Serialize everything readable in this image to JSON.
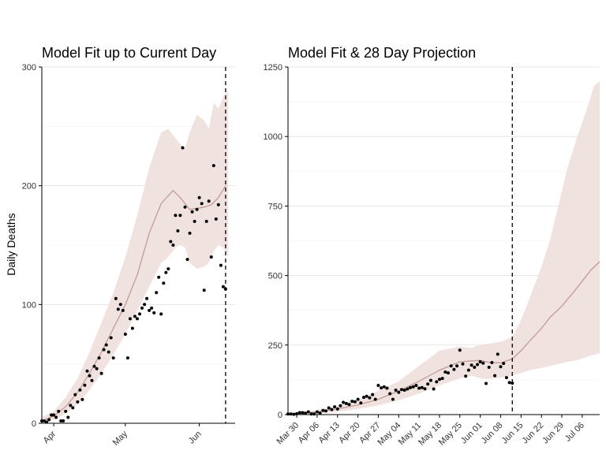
{
  "colors": {
    "band": "#efe2df",
    "median": "#c49a96",
    "points": "#000000"
  },
  "chart_data": [
    {
      "type": "line",
      "title": "Model Fit up to Current Day",
      "ylabel": "Daily Deaths",
      "xlabel": "",
      "x_unit": "days since Mar 27",
      "ylim": [
        0,
        300
      ],
      "xlim": [
        0,
        81
      ],
      "yticks": [
        0,
        100,
        200,
        300
      ],
      "ytick_labels": [
        "0",
        "100",
        "200",
        "300"
      ],
      "xticks": [
        5,
        35,
        66
      ],
      "xtick_labels": [
        "Apr",
        "May",
        "Jun"
      ],
      "current_day": 77,
      "median": {
        "x": [
          0,
          5,
          10,
          15,
          20,
          25,
          30,
          35,
          40,
          45,
          50,
          55,
          58,
          60,
          62,
          65,
          68,
          71,
          74,
          77
        ],
        "y": [
          2,
          6,
          14,
          26,
          42,
          60,
          80,
          100,
          125,
          160,
          185,
          196,
          190,
          185,
          180,
          181,
          182,
          184,
          190,
          200
        ]
      },
      "band_upper": {
        "x": [
          0,
          5,
          10,
          15,
          20,
          25,
          30,
          35,
          40,
          45,
          50,
          53,
          56,
          58,
          60,
          62,
          65,
          68,
          70,
          72,
          74,
          76,
          78
        ],
        "y": [
          5,
          10,
          22,
          38,
          60,
          85,
          110,
          140,
          175,
          215,
          245,
          248,
          240,
          235,
          232,
          245,
          260,
          255,
          248,
          270,
          265,
          275,
          280
        ]
      },
      "band_lower": {
        "x": [
          0,
          5,
          10,
          15,
          20,
          25,
          30,
          35,
          40,
          45,
          50,
          53,
          56,
          58,
          60,
          62,
          65,
          68,
          70,
          72,
          74,
          76,
          78
        ],
        "y": [
          1,
          3,
          8,
          16,
          28,
          42,
          58,
          75,
          95,
          115,
          135,
          140,
          148,
          150,
          148,
          135,
          130,
          132,
          135,
          145,
          150,
          148,
          140
        ]
      },
      "points": {
        "x": [
          0,
          1,
          2,
          3,
          4,
          5,
          6,
          7,
          8,
          9,
          10,
          11,
          12,
          13,
          14,
          15,
          16,
          17,
          18,
          19,
          20,
          21,
          22,
          23,
          24,
          25,
          26,
          27,
          28,
          29,
          30,
          31,
          32,
          33,
          34,
          35,
          36,
          37,
          38,
          39,
          40,
          41,
          42,
          43,
          44,
          45,
          46,
          47,
          48,
          49,
          50,
          51,
          52,
          53,
          54,
          55,
          56,
          57,
          58,
          59,
          60,
          61,
          62,
          63,
          64,
          65,
          66,
          67,
          68,
          69,
          70,
          71,
          72,
          73,
          74,
          75,
          76,
          77
        ],
        "y": [
          2,
          2,
          1,
          3,
          7,
          7,
          5,
          10,
          2,
          2,
          10,
          5,
          15,
          13,
          24,
          18,
          28,
          20,
          32,
          44,
          40,
          36,
          48,
          46,
          55,
          42,
          62,
          66,
          60,
          72,
          55,
          105,
          96,
          100,
          95,
          75,
          55,
          88,
          80,
          90,
          88,
          92,
          97,
          100,
          105,
          95,
          97,
          93,
          110,
          123,
          92,
          118,
          127,
          130,
          153,
          150,
          175,
          162,
          175,
          232,
          182,
          138,
          160,
          178,
          170,
          180,
          190,
          185,
          112,
          170,
          187,
          140,
          217,
          172,
          184,
          133,
          115,
          113
        ]
      }
    },
    {
      "type": "line",
      "title": "Model Fit & 28 Day Projection",
      "ylabel": "",
      "xlabel": "",
      "x_unit": "days since Mar 30",
      "ylim": [
        0,
        1250
      ],
      "xlim": [
        -3,
        104
      ],
      "yticks": [
        0,
        250,
        500,
        750,
        1000,
        1250
      ],
      "ytick_labels": [
        "0",
        "250",
        "500",
        "750",
        "1000",
        "1250"
      ],
      "xticks": [
        0,
        7,
        14,
        21,
        28,
        35,
        42,
        49,
        56,
        63,
        70,
        77,
        84,
        91,
        98
      ],
      "xtick_labels": [
        "Mar 30",
        "Apr 06",
        "Apr 13",
        "Apr 20",
        "Apr 27",
        "May 04",
        "May 11",
        "May 18",
        "May 25",
        "Jun 01",
        "Jun 08",
        "Jun 15",
        "Jun 22",
        "Jun 29",
        "Jul 06"
      ],
      "current_day": 74,
      "median": {
        "x": [
          -3,
          0,
          7,
          14,
          21,
          28,
          35,
          42,
          49,
          56,
          63,
          66,
          70,
          74,
          77,
          80,
          84,
          87,
          91,
          95,
          98,
          101,
          104
        ],
        "y": [
          1,
          3,
          10,
          20,
          35,
          55,
          85,
          120,
          160,
          190,
          195,
          188,
          186,
          200,
          230,
          265,
          310,
          350,
          390,
          440,
          480,
          520,
          550
        ]
      },
      "band_upper": {
        "x": [
          -3,
          0,
          7,
          14,
          21,
          28,
          35,
          42,
          49,
          56,
          60,
          63,
          66,
          70,
          74,
          77,
          80,
          84,
          87,
          90,
          93,
          96,
          99,
          102,
          104
        ],
        "y": [
          2,
          6,
          15,
          32,
          55,
          85,
          120,
          175,
          230,
          245,
          240,
          252,
          255,
          262,
          280,
          340,
          420,
          530,
          630,
          760,
          890,
          990,
          1080,
          1180,
          1200
        ]
      },
      "band_lower": {
        "x": [
          -3,
          0,
          7,
          14,
          21,
          28,
          35,
          42,
          49,
          56,
          60,
          63,
          66,
          70,
          74,
          77,
          80,
          84,
          87,
          90,
          93,
          96,
          99,
          102,
          104
        ],
        "y": [
          0,
          1,
          5,
          10,
          20,
          33,
          52,
          75,
          105,
          130,
          140,
          130,
          128,
          132,
          140,
          150,
          160,
          168,
          175,
          182,
          190,
          195,
          205,
          215,
          220
        ]
      },
      "points": {
        "x": [
          -3,
          -2,
          -1,
          0,
          1,
          2,
          3,
          4,
          5,
          6,
          7,
          8,
          9,
          10,
          11,
          12,
          13,
          14,
          15,
          16,
          17,
          18,
          19,
          20,
          21,
          22,
          23,
          24,
          25,
          26,
          27,
          28,
          29,
          30,
          31,
          32,
          33,
          34,
          35,
          36,
          37,
          38,
          39,
          40,
          41,
          42,
          43,
          44,
          45,
          46,
          47,
          48,
          49,
          50,
          51,
          52,
          53,
          54,
          55,
          56,
          57,
          58,
          59,
          60,
          61,
          62,
          63,
          64,
          65,
          66,
          67,
          68,
          69,
          70,
          71,
          72,
          73,
          74
        ],
        "y": [
          2,
          2,
          1,
          3,
          7,
          7,
          5,
          10,
          2,
          2,
          10,
          5,
          15,
          13,
          24,
          18,
          28,
          20,
          32,
          44,
          40,
          36,
          48,
          46,
          55,
          42,
          62,
          66,
          60,
          72,
          55,
          105,
          96,
          100,
          95,
          75,
          55,
          88,
          80,
          90,
          88,
          92,
          97,
          100,
          105,
          95,
          97,
          93,
          110,
          123,
          92,
          118,
          127,
          130,
          153,
          150,
          175,
          162,
          175,
          232,
          182,
          138,
          160,
          178,
          170,
          180,
          190,
          185,
          112,
          170,
          187,
          140,
          217,
          172,
          184,
          133,
          115,
          113
        ]
      }
    }
  ]
}
